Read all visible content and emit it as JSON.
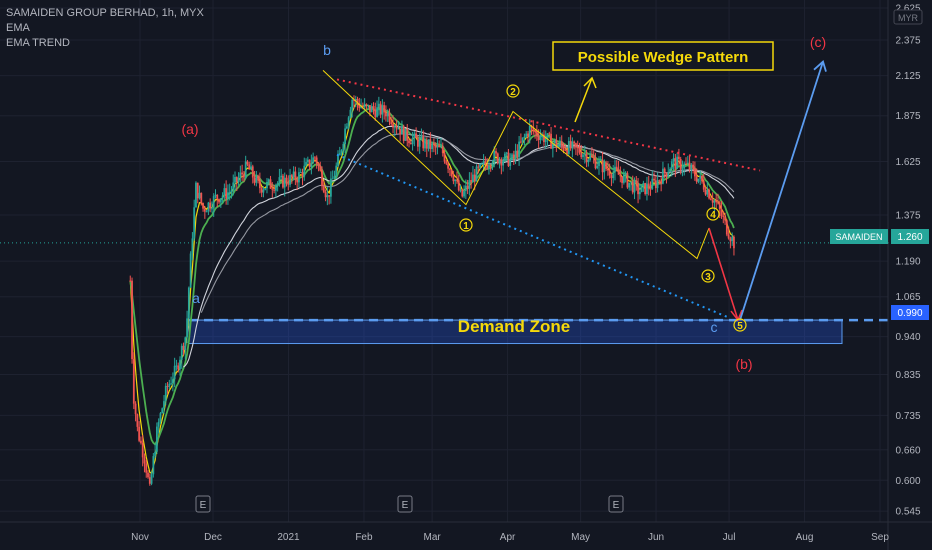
{
  "legend": {
    "symbol": "SAMAIDEN GROUP BERHAD, 1h, MYX",
    "ind1": "EMA",
    "ind2": "EMA TREND"
  },
  "currency": "MYR",
  "price_labels": {
    "ticker": "SAMAIDEN",
    "last": "1.260",
    "level": "0.990"
  },
  "annotations": {
    "wedge_title": "Possible Wedge Pattern",
    "demand_zone": "Demand Zone",
    "wave_a_upper": "(a)",
    "wave_b_upper": "(b)",
    "wave_c_upper": "(c)",
    "wave_a_lower": "a",
    "wave_b_lower": "b",
    "wave_c_lower": "c",
    "w1": "1",
    "w2": "2",
    "w3": "3",
    "w4": "4",
    "w5": "5",
    "earnings": [
      "E",
      "E",
      "E"
    ]
  },
  "colors": {
    "background": "#131722",
    "up_candle": "#26a69a",
    "down_candle": "#ef5350",
    "wedge_upper": "#f23645",
    "wedge_lower": "#2196f3",
    "wave_lines": "#f5d90a",
    "demand_zone": "#2962ff",
    "projection": "#5b9cf0"
  },
  "chart_data": {
    "type": "line",
    "title": "SAMAIDEN GROUP BERHAD, 1h, MYX",
    "y_scale": "log",
    "ylim": [
      0.53,
      2.65
    ],
    "y_ticks": [
      "2.625",
      "2.375",
      "2.125",
      "1.875",
      "1.625",
      "1.375",
      "1.190",
      "1.065",
      "0.940",
      "0.835",
      "0.735",
      "0.660",
      "0.600",
      "0.545"
    ],
    "x_ticks": [
      "Nov",
      "Dec",
      "2021",
      "Feb",
      "Mar",
      "Apr",
      "May",
      "Jun",
      "Jul",
      "Aug",
      "Sep"
    ],
    "series": [
      {
        "values": [
          [
            "2020-10-28",
            1.12
          ],
          [
            "2020-10-29",
            0.8
          ],
          [
            "2020-10-31",
            0.7
          ],
          [
            "2020-11-03",
            0.64
          ],
          [
            "2020-11-05",
            0.58
          ],
          [
            "2020-11-08",
            0.7
          ],
          [
            "2020-11-12",
            0.8
          ],
          [
            "2020-11-16",
            0.85
          ],
          [
            "2020-11-20",
            0.95
          ],
          [
            "2020-11-24",
            1.5
          ],
          [
            "2020-11-27",
            1.4
          ],
          [
            "2020-12-02",
            1.45
          ],
          [
            "2020-12-08",
            1.48
          ],
          [
            "2020-12-15",
            1.6
          ],
          [
            "2020-12-20",
            1.5
          ],
          [
            "2020-12-28",
            1.52
          ],
          [
            "2021-01-05",
            1.55
          ],
          [
            "2021-01-12",
            1.65
          ],
          [
            "2021-01-17",
            1.45
          ],
          [
            "2021-01-22",
            1.65
          ],
          [
            "2021-01-27",
            1.98
          ],
          [
            "2021-02-01",
            1.92
          ],
          [
            "2021-02-10",
            1.9
          ],
          [
            "2021-02-18",
            1.76
          ],
          [
            "2021-02-25",
            1.72
          ],
          [
            "2021-03-05",
            1.68
          ],
          [
            "2021-03-10",
            1.55
          ],
          [
            "2021-03-13",
            1.45
          ],
          [
            "2021-03-18",
            1.55
          ],
          [
            "2021-03-26",
            1.65
          ],
          [
            "2021-04-03",
            1.63
          ],
          [
            "2021-04-10",
            1.8
          ],
          [
            "2021-04-20",
            1.72
          ],
          [
            "2021-05-01",
            1.68
          ],
          [
            "2021-05-10",
            1.6
          ],
          [
            "2021-05-18",
            1.55
          ],
          [
            "2021-05-25",
            1.48
          ],
          [
            "2021-06-01",
            1.52
          ],
          [
            "2021-06-08",
            1.62
          ],
          [
            "2021-06-14",
            1.6
          ],
          [
            "2021-06-20",
            1.52
          ],
          [
            "2021-06-26",
            1.42
          ],
          [
            "2021-06-30",
            1.32
          ],
          [
            "2021-07-03",
            1.26
          ]
        ]
      }
    ],
    "horizontal_line": 0.99,
    "demand_zone_range": [
      0.92,
      0.99
    ]
  }
}
